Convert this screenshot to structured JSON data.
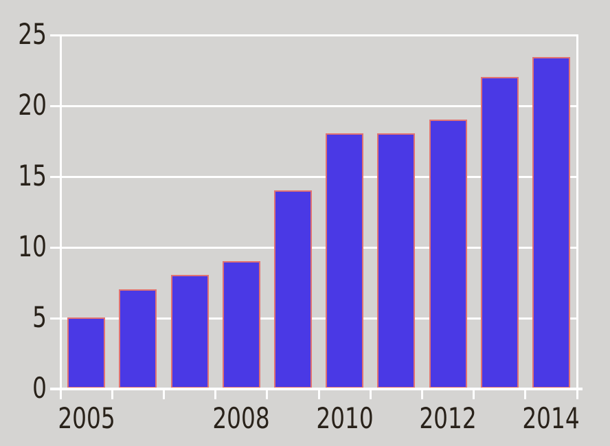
{
  "chart_data": {
    "type": "bar",
    "categories": [
      "2005",
      "2006",
      "2007",
      "2008",
      "2009",
      "2010",
      "2011",
      "2012",
      "2013",
      "2014"
    ],
    "values": [
      5,
      7,
      8,
      9,
      14,
      18,
      18,
      19,
      22,
      23.4
    ],
    "title": "",
    "xlabel": "",
    "ylabel": "",
    "ylim": [
      0,
      25
    ],
    "yticks": [
      0,
      5,
      10,
      15,
      20,
      25
    ],
    "x_axis_labels_shown": [
      "2005",
      "2008",
      "2010",
      "2012",
      "2014"
    ],
    "legend": "none",
    "grid": "horizontal",
    "colors": {
      "background": "#d5d4d2",
      "bar_fill": "#4a39e5",
      "bar_border": "#e17272",
      "gridline": "#ffffff",
      "tick_text": "#29221a"
    }
  }
}
